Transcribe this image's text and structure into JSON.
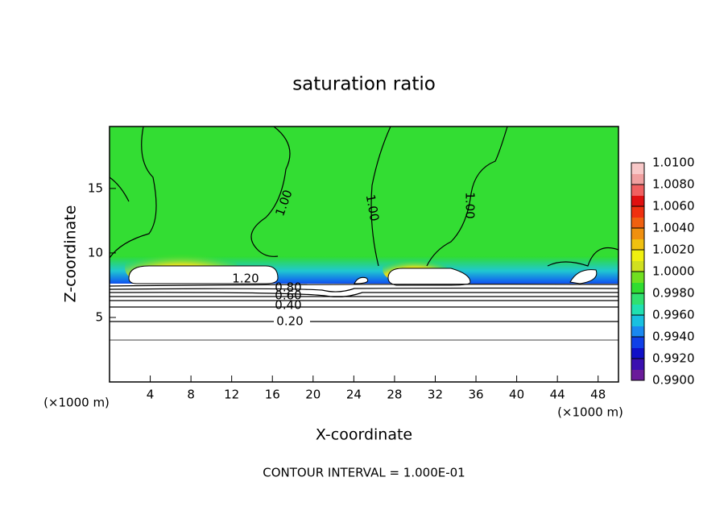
{
  "chart_data": {
    "type": "contour",
    "title": "saturation ratio",
    "x_label": "X-coordinate",
    "y_label": "Z-coordinate",
    "x_unit": "(×1000 m)",
    "y_unit": "(×1000 m)",
    "xlim": [
      0,
      50
    ],
    "ylim": [
      0,
      19.8
    ],
    "xticks": [
      4,
      8,
      12,
      16,
      20,
      24,
      28,
      32,
      36,
      40,
      44,
      48
    ],
    "yticks": [
      5,
      10,
      15
    ],
    "contour_labels": [
      "1.00",
      "1.00",
      "1.00",
      "1.20",
      "0.80",
      "0.60",
      "0.40",
      "0.20"
    ],
    "footer": "CONTOUR INTERVAL = 1.000E-01",
    "colorbar": {
      "lim": [
        0.99,
        1.01
      ],
      "colors": [
        "#6a1b9a",
        "#3a10b0",
        "#1010c8",
        "#1040e8",
        "#1a88f0",
        "#18c0e0",
        "#20e0b0",
        "#30e070",
        "#30dd30",
        "#70e020",
        "#d0e020",
        "#f0f010",
        "#f0c010",
        "#f09010",
        "#f06010",
        "#f03010",
        "#e01010",
        "#f06060",
        "#f0a0a0",
        "#f8c8c8"
      ],
      "ticks": [
        {
          "value": 0.99,
          "label": "0.9900"
        },
        {
          "value": 0.992,
          "label": "0.9920"
        },
        {
          "value": 0.994,
          "label": "0.9940"
        },
        {
          "value": 0.996,
          "label": "0.9960"
        },
        {
          "value": 0.998,
          "label": "0.9980"
        },
        {
          "value": 1.0,
          "label": "1.0000"
        },
        {
          "value": 1.002,
          "label": "1.0020"
        },
        {
          "value": 1.004,
          "label": "1.0040"
        },
        {
          "value": 1.006,
          "label": "1.0060"
        },
        {
          "value": 1.008,
          "label": "1.0080"
        },
        {
          "value": 1.01,
          "label": "1.0100"
        }
      ]
    }
  }
}
